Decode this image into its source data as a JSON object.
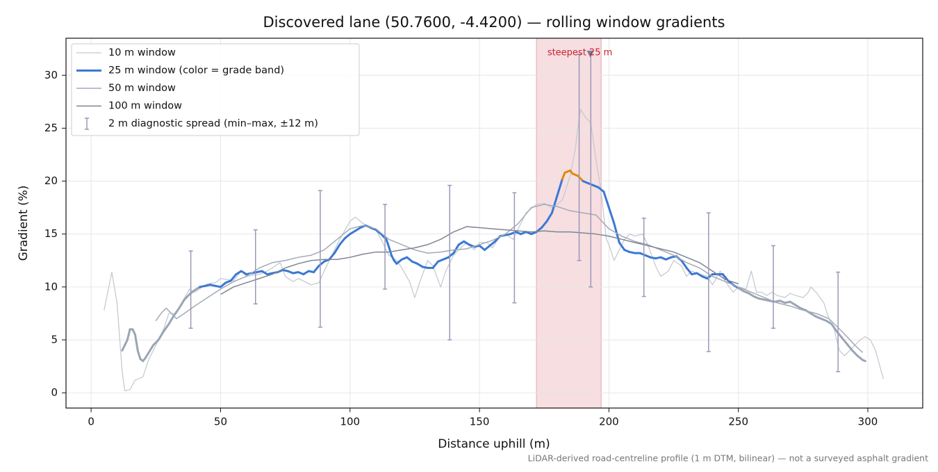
{
  "chart_data": {
    "type": "line",
    "title": "Discovered lane (50.7600, -4.4200) — rolling window gradients",
    "x_label": "Distance uphill (m)",
    "y_label": "Gradient (%)",
    "footnote": "LiDAR-derived road-centreline profile (1 m DTM, bilinear) — not a surveyed asphalt gradient",
    "xlim": [
      -9.7,
      321.2
    ],
    "ylim": [
      -1.44,
      33.5
    ],
    "xticks": [
      0,
      50,
      100,
      150,
      200,
      250,
      300
    ],
    "yticks": [
      0,
      5,
      10,
      15,
      20,
      25,
      30
    ],
    "grid": true,
    "legend": "upper left",
    "highlight": {
      "xlim": [
        172,
        197
      ],
      "color": "#f4d6da"
    },
    "annotation": {
      "text": "steepest 25 m",
      "x": 192.8,
      "y": 32,
      "color": "#c8202f"
    },
    "series": [
      {
        "name": "10 m window",
        "color": "#c5cad3",
        "width": 1.3,
        "x": [
          5,
          8,
          10,
          12,
          13,
          15,
          17,
          20,
          22,
          25,
          28,
          30,
          33,
          35,
          38,
          40,
          43,
          45,
          48,
          50,
          55,
          58,
          60,
          65,
          68,
          70,
          73,
          75,
          78,
          80,
          85,
          88,
          90,
          93,
          96,
          100,
          102,
          105,
          108,
          110,
          112,
          115,
          118,
          120,
          123,
          125,
          127,
          130,
          132,
          135,
          137,
          140,
          142,
          145,
          148,
          150,
          153,
          155,
          158,
          160,
          163,
          165,
          168,
          172,
          175,
          178,
          180,
          182,
          185,
          187,
          188,
          189,
          191,
          193,
          195,
          197,
          199,
          200,
          202,
          204,
          206,
          208,
          210,
          213,
          215,
          218,
          220,
          223,
          225,
          228,
          230,
          232,
          235,
          238,
          240,
          243,
          245,
          248,
          250,
          253,
          255,
          257,
          259,
          261,
          263,
          265,
          268,
          270,
          272,
          275,
          277,
          278,
          280,
          283,
          285,
          287,
          289,
          291,
          293,
          295,
          297,
          299,
          301,
          303,
          306
        ],
        "values": [
          7.8,
          11.4,
          8.5,
          2,
          0.2,
          0.3,
          1.2,
          1.5,
          3,
          4.5,
          6,
          7.5,
          7.5,
          8.5,
          9.8,
          9.5,
          10,
          10.3,
          10.4,
          10.8,
          10.6,
          11.5,
          11,
          11.2,
          11.5,
          11.8,
          12.3,
          11,
          10.5,
          10.8,
          10.2,
          10.4,
          11.5,
          13,
          14.5,
          16.2,
          16.6,
          16,
          15.5,
          15.4,
          14.5,
          13,
          12.5,
          11.8,
          10.5,
          9,
          10.5,
          12.5,
          12,
          10,
          11.5,
          13,
          13.5,
          14.2,
          13.5,
          14.2,
          14.2,
          13.7,
          14.8,
          15,
          14.5,
          15.5,
          17,
          17.8,
          17.9,
          17.5,
          17.8,
          18.2,
          20.5,
          23,
          25,
          26.8,
          26,
          25.5,
          22,
          19,
          14.5,
          14,
          12.5,
          13.5,
          14.5,
          15,
          14.8,
          15,
          14,
          12,
          11,
          11.5,
          12.5,
          12,
          11,
          11.5,
          11.2,
          11,
          10.2,
          11.5,
          10.5,
          9.5,
          10,
          9.8,
          11.5,
          9.5,
          9.5,
          9.2,
          9.5,
          9.2,
          9,
          9.4,
          9.2,
          9,
          9.5,
          10,
          9.5,
          8.5,
          7,
          6,
          4,
          3.5,
          4,
          4.5,
          5,
          5.3,
          5,
          4,
          1.3
        ]
      },
      {
        "name": "25 m window (color = grade band)",
        "color": "#3a78d4",
        "width": 3,
        "band_edges": [
          10,
          20
        ],
        "band_colors": [
          "#9aa5b4",
          "#3a78d4",
          "#e08a0b"
        ],
        "x": [
          12,
          13,
          14,
          15,
          16,
          17,
          18,
          19,
          20,
          21,
          22,
          24,
          26,
          28,
          30,
          32,
          34,
          36,
          38,
          40,
          42,
          44,
          46,
          48,
          50,
          52,
          54,
          56,
          58,
          60,
          62,
          64,
          66,
          68,
          70,
          72,
          74,
          76,
          78,
          80,
          82,
          84,
          86,
          88,
          90,
          92,
          94,
          96,
          98,
          100,
          102,
          104,
          106,
          108,
          110,
          112,
          114,
          115,
          116,
          117,
          118,
          120,
          122,
          124,
          126,
          128,
          130,
          132,
          134,
          136,
          138,
          140,
          142,
          144,
          146,
          148,
          150,
          152,
          154,
          156,
          158,
          160,
          162,
          164,
          166,
          168,
          170,
          172,
          174,
          176,
          178,
          180,
          182,
          183,
          185,
          186,
          188,
          190,
          192,
          194,
          196,
          198,
          200,
          202,
          204,
          206,
          208,
          210,
          212,
          214,
          216,
          218,
          220,
          222,
          224,
          226,
          228,
          230,
          232,
          234,
          236,
          238,
          240,
          242,
          244,
          246,
          248,
          250,
          252,
          254,
          256,
          258,
          260,
          262,
          264,
          266,
          268,
          270,
          272,
          274,
          276,
          278,
          280,
          282,
          284,
          286,
          288,
          290,
          292,
          294,
          296,
          298,
          299
        ],
        "values": [
          4,
          4.5,
          5,
          6,
          6,
          5.5,
          4,
          3.2,
          3,
          3.3,
          3.7,
          4.5,
          5,
          5.8,
          6.5,
          7.3,
          8,
          8.8,
          9.3,
          9.7,
          10,
          10.1,
          10.2,
          10.1,
          10,
          10.4,
          10.6,
          11.2,
          11.5,
          11.2,
          11.3,
          11.4,
          11.5,
          11.2,
          11.3,
          11.4,
          11.6,
          11.5,
          11.3,
          11.4,
          11.2,
          11.5,
          11.4,
          12,
          12.4,
          12.6,
          13.2,
          14,
          14.6,
          15,
          15.3,
          15.6,
          15.8,
          15.6,
          15.4,
          15,
          14.5,
          13.8,
          13,
          12.5,
          12.2,
          12.6,
          12.8,
          12.4,
          12.2,
          11.9,
          11.8,
          11.8,
          12.4,
          12.6,
          12.8,
          13.2,
          14,
          14.3,
          14,
          13.8,
          13.9,
          13.5,
          13.9,
          14.3,
          14.8,
          14.9,
          15,
          15.2,
          15,
          15.2,
          15,
          15.2,
          15.6,
          16.2,
          17,
          18.6,
          20.2,
          20.8,
          21,
          20.7,
          20.5,
          20,
          19.8,
          19.6,
          19.4,
          19,
          17.5,
          16,
          14.2,
          13.5,
          13.3,
          13.2,
          13.2,
          13,
          12.8,
          12.7,
          12.8,
          12.6,
          12.8,
          12.9,
          12.5,
          11.8,
          11.2,
          11.3,
          11,
          10.8,
          11.2,
          11.2,
          11.2,
          10.6,
          10.2,
          9.9,
          9.6,
          9.4,
          9.1,
          8.9,
          8.8,
          8.7,
          8.6,
          8.7,
          8.5,
          8.6,
          8.3,
          8,
          7.8,
          7.5,
          7.2,
          7,
          6.8,
          6.5,
          5.8,
          5.2,
          4.6,
          4,
          3.5,
          3.1,
          3
        ]
      },
      {
        "name": "50 m window",
        "color": "#a2a9b6",
        "width": 1.5,
        "x": [
          25,
          27,
          29,
          31,
          33,
          36,
          40,
          45,
          50,
          55,
          60,
          65,
          70,
          75,
          80,
          85,
          90,
          95,
          100,
          105,
          110,
          115,
          120,
          125,
          130,
          135,
          140,
          145,
          150,
          155,
          160,
          165,
          170,
          175,
          180,
          185,
          190,
          195,
          200,
          205,
          210,
          215,
          220,
          225,
          230,
          235,
          240,
          245,
          250,
          255,
          260,
          265,
          270,
          275,
          280,
          285,
          290,
          295,
          298
        ],
        "values": [
          6.8,
          7.5,
          8,
          7.5,
          7,
          7.5,
          8.2,
          9,
          9.8,
          10.5,
          11,
          11.8,
          12.3,
          12.5,
          12.8,
          13,
          13.5,
          14.5,
          15.5,
          15.8,
          15.5,
          14.5,
          14,
          13.5,
          13.2,
          13.3,
          13.5,
          13.6,
          14,
          14.4,
          15,
          16,
          17.5,
          17.8,
          17.6,
          17.2,
          17,
          16.8,
          15.5,
          14.8,
          14.3,
          14,
          13.5,
          13,
          12.3,
          11.8,
          11,
          10.5,
          10,
          9.5,
          9,
          8.5,
          8.2,
          7.8,
          7.5,
          7,
          5.8,
          4.5,
          3.8
        ]
      },
      {
        "name": "100 m window",
        "color": "#7e8494",
        "width": 1.5,
        "x": [
          50,
          55,
          60,
          65,
          70,
          75,
          80,
          85,
          90,
          95,
          100,
          105,
          110,
          115,
          120,
          125,
          130,
          135,
          140,
          145,
          150,
          155,
          160,
          165,
          170,
          175,
          180,
          185,
          190,
          195,
          200,
          205,
          210,
          215,
          220,
          225,
          230,
          235,
          240,
          245,
          250
        ],
        "values": [
          9.3,
          10,
          10.4,
          10.8,
          11.2,
          11.8,
          12.2,
          12.5,
          12.6,
          12.6,
          12.8,
          13.1,
          13.3,
          13.3,
          13.5,
          13.7,
          14,
          14.5,
          15.2,
          15.7,
          15.6,
          15.5,
          15.4,
          15.3,
          15.2,
          15.3,
          15.2,
          15.2,
          15.1,
          15,
          14.8,
          14.5,
          14.2,
          13.9,
          13.6,
          13.3,
          12.8,
          12.3,
          11.5,
          10.7,
          10.3
        ]
      }
    ],
    "spread": {
      "name": "2 m diagnostic spread (min–max, ±12 m)",
      "color": "#9b98b8",
      "x": [
        38.5,
        63.5,
        88.5,
        113.5,
        138.5,
        163.5,
        188.5,
        193,
        213.5,
        238.5,
        263.5,
        288.5
      ],
      "low": [
        6.1,
        8.4,
        6.2,
        9.8,
        5.0,
        8.5,
        12.5,
        10.0,
        9.1,
        3.9,
        6.1,
        2.0
      ],
      "high": [
        13.4,
        15.4,
        19.1,
        17.8,
        19.6,
        18.9,
        32.0,
        32.0,
        16.5,
        17.0,
        13.9,
        11.4
      ]
    }
  }
}
